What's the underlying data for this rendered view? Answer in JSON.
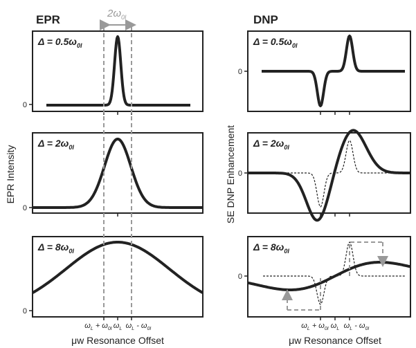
{
  "header": {
    "epr": "EPR",
    "dnp": "DNP",
    "width_label": {
      "main": "2ω",
      "sub": "0I"
    }
  },
  "panels": [
    {
      "label": {
        "main": "Δ = 0.5ω",
        "sub": "0I"
      },
      "zero": "0"
    },
    {
      "label": {
        "main": "Δ = 2ω",
        "sub": "0I"
      },
      "zero": "0"
    },
    {
      "label": {
        "main": "Δ = 8ω",
        "sub": "0I"
      },
      "zero": "0"
    },
    {
      "label": {
        "main": "Δ = 0.5ω",
        "sub": "0I"
      },
      "zero": "0"
    },
    {
      "label": {
        "main": "Δ = 2ω",
        "sub": "0I"
      },
      "zero": "0"
    },
    {
      "label": {
        "main": "Δ = 8ω",
        "sub": "0I"
      },
      "zero": "0"
    }
  ],
  "axes": {
    "epr_y": "EPR Intensity",
    "dnp_y": "SE DNP Enhancement",
    "x_left": "μw Resonance Offset",
    "x_right": "μw Resonance Offset"
  },
  "ticks": {
    "left": [
      {
        "main": "ω",
        "sub": "L",
        "rest": " + ω",
        "sub2": "0I"
      },
      {
        "main": "ω",
        "sub": "L",
        "rest": "",
        "sub2": ""
      },
      {
        "main": "ω",
        "sub": "L",
        "rest": " - ω",
        "sub2": "0I"
      }
    ],
    "right": [
      {
        "main": "ω",
        "sub": "L",
        "rest": " + ω",
        "sub2": "0I"
      },
      {
        "main": "ω",
        "sub": "L",
        "rest": "",
        "sub2": ""
      },
      {
        "main": "ω",
        "sub": "L",
        "rest": " - ω",
        "sub2": "0I"
      }
    ]
  }
}
